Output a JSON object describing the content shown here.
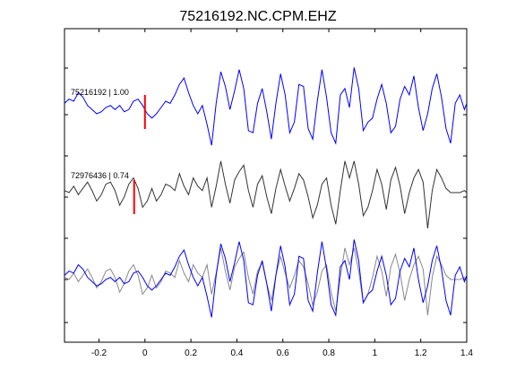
{
  "chart_data": {
    "type": "line",
    "title": "75216192.NC.CPM.EHZ",
    "xlim": [
      -0.35,
      1.4
    ],
    "xticks": [
      -0.2,
      0,
      0.2,
      0.4,
      0.6,
      0.8,
      1,
      1.2,
      1.4
    ],
    "xtick_labels": [
      "-0.2",
      "0",
      "0.2",
      "0.4",
      "0.6",
      "0.8",
      "1",
      "1.2",
      "1.4"
    ],
    "xlabel": "",
    "ylabel": "",
    "grid": false,
    "colors": {
      "template": "#0000ff",
      "match": "#333333",
      "overlay_match": "#888888",
      "pick": "#ff0000"
    },
    "labels": {
      "top": "75216192 | 1.00",
      "middle": "72976436 | 0.74"
    },
    "picks": {
      "top": 0.0,
      "middle": -0.047
    },
    "series": [
      {
        "id": "template",
        "x": [
          -0.35,
          -0.33,
          -0.31,
          -0.29,
          -0.27,
          -0.25,
          -0.23,
          -0.21,
          -0.19,
          -0.17,
          -0.15,
          -0.13,
          -0.11,
          -0.09,
          -0.07,
          -0.05,
          -0.03,
          -0.01,
          0.01,
          0.03,
          0.05,
          0.07,
          0.09,
          0.11,
          0.13,
          0.15,
          0.17,
          0.19,
          0.21,
          0.23,
          0.25,
          0.27,
          0.29,
          0.31,
          0.33,
          0.35,
          0.37,
          0.39,
          0.41,
          0.43,
          0.45,
          0.47,
          0.49,
          0.51,
          0.53,
          0.55,
          0.57,
          0.59,
          0.61,
          0.63,
          0.65,
          0.67,
          0.69,
          0.71,
          0.73,
          0.75,
          0.77,
          0.79,
          0.81,
          0.83,
          0.85,
          0.87,
          0.89,
          0.91,
          0.93,
          0.95,
          0.97,
          0.99,
          1.01,
          1.03,
          1.05,
          1.07,
          1.09,
          1.11,
          1.13,
          1.15,
          1.17,
          1.19,
          1.21,
          1.23,
          1.25,
          1.27,
          1.29,
          1.31,
          1.33,
          1.35,
          1.37,
          1.39,
          1.4
        ],
        "y": [
          0.1,
          0.2,
          0.15,
          0.35,
          0.25,
          0.05,
          -0.05,
          -0.15,
          -0.1,
          0.0,
          0.05,
          -0.05,
          0.05,
          -0.1,
          -0.05,
          0.15,
          0.2,
          0.05,
          -0.15,
          -0.25,
          -0.15,
          0.0,
          0.15,
          0.1,
          0.3,
          0.55,
          0.7,
          0.35,
          0.05,
          -0.15,
          0.05,
          -0.4,
          -0.9,
          0.1,
          0.85,
          0.5,
          -0.05,
          0.4,
          0.9,
          0.45,
          -0.55,
          -0.6,
          0.1,
          0.45,
          -0.1,
          -0.75,
          0.1,
          0.8,
          0.3,
          -0.6,
          -0.35,
          0.55,
          0.5,
          -0.5,
          -0.75,
          0.15,
          0.9,
          0.25,
          -0.6,
          -0.85,
          0.3,
          0.45,
          0.0,
          0.95,
          0.45,
          -0.55,
          -0.35,
          -0.25,
          0.2,
          0.55,
          0.1,
          -0.6,
          -0.45,
          0.2,
          0.5,
          0.3,
          0.75,
          0.0,
          -0.55,
          -0.15,
          0.45,
          0.8,
          0.25,
          -0.5,
          -0.85,
          0.1,
          0.3,
          -0.05,
          0.1
        ]
      },
      {
        "id": "match",
        "x": [
          -0.35,
          -0.33,
          -0.31,
          -0.29,
          -0.27,
          -0.25,
          -0.23,
          -0.21,
          -0.19,
          -0.17,
          -0.15,
          -0.13,
          -0.11,
          -0.09,
          -0.07,
          -0.05,
          -0.03,
          -0.01,
          0.01,
          0.03,
          0.05,
          0.07,
          0.09,
          0.11,
          0.13,
          0.15,
          0.17,
          0.19,
          0.21,
          0.23,
          0.25,
          0.27,
          0.29,
          0.31,
          0.33,
          0.35,
          0.37,
          0.39,
          0.41,
          0.43,
          0.45,
          0.47,
          0.49,
          0.51,
          0.53,
          0.55,
          0.57,
          0.59,
          0.61,
          0.63,
          0.65,
          0.67,
          0.69,
          0.71,
          0.73,
          0.75,
          0.77,
          0.79,
          0.81,
          0.83,
          0.85,
          0.87,
          0.89,
          0.91,
          0.93,
          0.95,
          0.97,
          0.99,
          1.01,
          1.03,
          1.05,
          1.07,
          1.09,
          1.11,
          1.13,
          1.15,
          1.17,
          1.19,
          1.21,
          1.23,
          1.25,
          1.27,
          1.29,
          1.31,
          1.33,
          1.35,
          1.37,
          1.39,
          1.4
        ],
        "y": [
          0.05,
          0.0,
          0.15,
          -0.05,
          0.1,
          0.25,
          0.05,
          -0.2,
          -0.05,
          0.2,
          0.25,
          0.05,
          -0.3,
          -0.1,
          0.2,
          0.35,
          0.1,
          -0.35,
          -0.2,
          0.1,
          -0.2,
          -0.05,
          0.2,
          0.15,
          0.05,
          0.45,
          0.15,
          -0.05,
          0.35,
          0.15,
          0.05,
          0.35,
          -0.35,
          0.15,
          0.75,
          0.2,
          -0.25,
          0.3,
          0.5,
          0.65,
          0.05,
          -0.35,
          0.2,
          0.4,
          -0.1,
          -0.5,
          0.1,
          0.55,
          0.15,
          -0.2,
          0.1,
          0.45,
          0.3,
          -0.1,
          -0.6,
          -0.3,
          0.2,
          0.35,
          -0.3,
          -0.75,
          0.05,
          0.75,
          0.35,
          0.75,
          0.2,
          -0.55,
          -0.35,
          0.05,
          0.55,
          0.2,
          -0.4,
          0.3,
          0.6,
          0.15,
          -0.5,
          0.0,
          0.35,
          0.55,
          0.25,
          -0.85,
          0.05,
          0.55,
          0.35,
          0.1,
          0.0,
          0.0,
          0.0,
          0.05,
          0.0
        ]
      }
    ]
  }
}
